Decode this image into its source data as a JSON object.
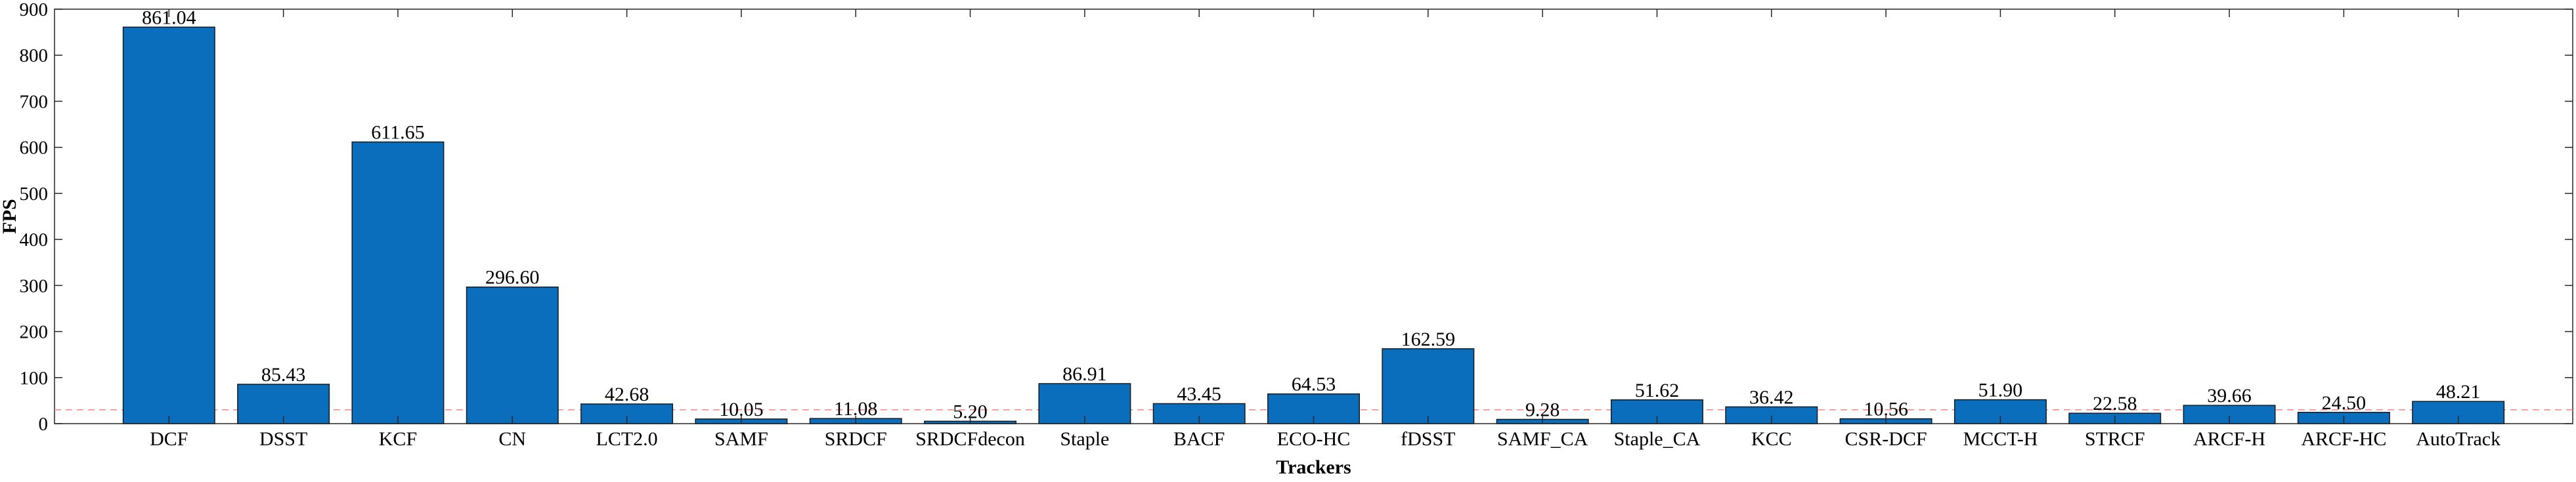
{
  "chart_data": {
    "type": "bar",
    "title": "",
    "xlabel": "Trackers",
    "ylabel": "FPS",
    "ylim": [
      0,
      900
    ],
    "yticks": [
      0,
      100,
      200,
      300,
      400,
      500,
      600,
      700,
      800,
      900
    ],
    "grid": false,
    "legend": "none",
    "categories": [
      "DCF",
      "DSST",
      "KCF",
      "CN",
      "LCT2.0",
      "SAMF",
      "SRDCF",
      "SRDCFdecon",
      "Staple",
      "BACF",
      "ECO-HC",
      "fDSST",
      "SAMF_CA",
      "Staple_CA",
      "KCC",
      "CSR-DCF",
      "MCCT-H",
      "STRCF",
      "ARCF-H",
      "ARCF-HC",
      "AutoTrack"
    ],
    "values": [
      861.04,
      85.43,
      611.65,
      296.6,
      42.68,
      10.05,
      11.08,
      5.2,
      86.91,
      43.45,
      64.53,
      162.59,
      9.28,
      51.62,
      36.42,
      10.56,
      51.9,
      22.58,
      39.66,
      24.5,
      48.21
    ],
    "data_labels": [
      "861.04",
      "85.43",
      "611.65",
      "296.60",
      "42.68",
      "10.05",
      "11.08",
      "5.20",
      "86.91",
      "43.45",
      "64.53",
      "162.59",
      "9.28",
      "51.62",
      "36.42",
      "10.56",
      "51.90",
      "22.58",
      "39.66",
      "24.50",
      "48.21"
    ],
    "reference_line": {
      "value": 30,
      "style": "dashed",
      "color": "#ff8080"
    },
    "colors": {
      "bar": "#0a6ebd",
      "bar_edge": "#1a1a1a",
      "axis": "#262626"
    }
  }
}
